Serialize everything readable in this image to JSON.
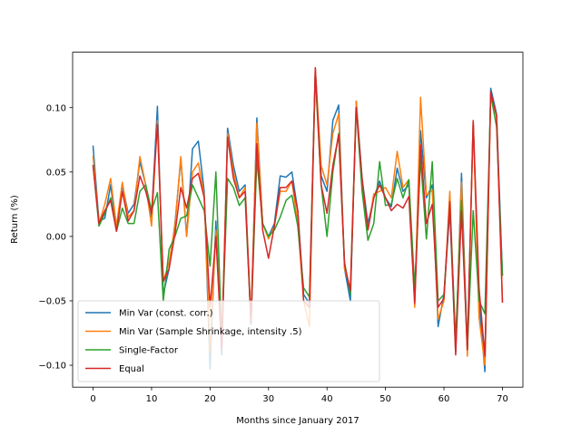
{
  "chart_data": {
    "type": "line",
    "title": "",
    "xlabel": "Months since January 2017",
    "ylabel": "Return (%)",
    "xlim": [
      -3.5,
      73.5
    ],
    "ylim": [
      -0.117,
      0.143
    ],
    "x_ticks": [
      0,
      10,
      20,
      30,
      40,
      50,
      60,
      70
    ],
    "x_tick_labels": [
      "0",
      "10",
      "20",
      "30",
      "40",
      "50",
      "60",
      "70"
    ],
    "y_ticks": [
      -0.1,
      -0.05,
      0.0,
      0.05,
      0.1
    ],
    "y_tick_labels": [
      "−0.10",
      "−0.05",
      "0.00",
      "0.05",
      "0.10"
    ],
    "grid": false,
    "legend_position": "lower-left",
    "x": [
      0,
      1,
      2,
      3,
      4,
      5,
      6,
      7,
      8,
      9,
      10,
      11,
      12,
      13,
      14,
      15,
      16,
      17,
      18,
      19,
      20,
      21,
      22,
      23,
      24,
      25,
      26,
      27,
      28,
      29,
      30,
      31,
      32,
      33,
      34,
      35,
      36,
      37,
      38,
      39,
      40,
      41,
      42,
      43,
      44,
      45,
      46,
      47,
      48,
      49,
      50,
      51,
      52,
      53,
      54,
      55,
      56,
      57,
      58,
      59,
      60,
      61,
      62,
      63,
      64,
      65,
      66,
      67,
      68,
      69,
      70
    ],
    "series": [
      {
        "name": "Min Var (const. corr.)",
        "color": "#1f77b4",
        "values": [
          0.07,
          0.012,
          0.014,
          0.04,
          0.005,
          0.04,
          0.018,
          0.025,
          0.058,
          0.04,
          0.015,
          0.101,
          -0.045,
          -0.025,
          0.01,
          0.06,
          0.0,
          0.068,
          0.074,
          0.035,
          -0.103,
          0.012,
          -0.092,
          0.084,
          0.055,
          0.035,
          0.04,
          -0.068,
          0.092,
          0.01,
          0.0,
          0.01,
          0.047,
          0.046,
          0.05,
          0.02,
          -0.045,
          -0.052,
          0.13,
          0.047,
          0.035,
          0.09,
          0.102,
          -0.025,
          -0.05,
          0.105,
          0.045,
          0.01,
          0.03,
          0.043,
          0.03,
          0.023,
          0.053,
          0.035,
          0.04,
          -0.05,
          0.082,
          0.03,
          0.04,
          -0.07,
          -0.045,
          0.02,
          -0.09,
          0.049,
          -0.088,
          0.089,
          -0.05,
          -0.105,
          0.115,
          0.095,
          -0.03
        ]
      },
      {
        "name": "Min Var (Sample Shrinkage, intensity .5)",
        "color": "#ff7f0e",
        "values": [
          0.062,
          0.01,
          0.025,
          0.045,
          0.008,
          0.042,
          0.015,
          0.02,
          0.062,
          0.04,
          0.008,
          0.09,
          -0.035,
          -0.02,
          0.008,
          0.062,
          0.0,
          0.05,
          0.057,
          0.032,
          -0.09,
          0.005,
          -0.085,
          0.08,
          0.05,
          0.03,
          0.038,
          -0.065,
          0.088,
          0.01,
          -0.002,
          0.008,
          0.035,
          0.035,
          0.043,
          0.01,
          -0.05,
          -0.07,
          0.13,
          0.055,
          0.04,
          0.08,
          0.095,
          -0.025,
          -0.04,
          0.105,
          0.04,
          0.005,
          0.033,
          0.035,
          0.038,
          0.03,
          0.066,
          0.038,
          0.044,
          -0.055,
          0.108,
          0.032,
          0.036,
          -0.064,
          -0.05,
          0.035,
          -0.088,
          0.042,
          -0.093,
          0.089,
          -0.063,
          -0.1,
          0.109,
          0.094,
          -0.05
        ]
      },
      {
        "name": "Single-Factor",
        "color": "#2ca02c",
        "values": [
          0.055,
          0.008,
          0.018,
          0.03,
          0.004,
          0.022,
          0.01,
          0.01,
          0.035,
          0.04,
          0.02,
          0.034,
          -0.05,
          -0.01,
          0.0,
          0.014,
          0.016,
          0.04,
          0.03,
          0.02,
          -0.023,
          0.05,
          -0.08,
          0.045,
          0.038,
          0.024,
          0.03,
          -0.068,
          0.06,
          0.01,
          0.0,
          0.005,
          0.015,
          0.028,
          0.032,
          0.008,
          -0.04,
          -0.047,
          0.125,
          0.04,
          0.0,
          0.05,
          0.08,
          -0.02,
          -0.045,
          0.1,
          0.035,
          -0.003,
          0.01,
          0.058,
          0.024,
          0.025,
          0.045,
          0.03,
          0.044,
          -0.04,
          0.06,
          -0.002,
          0.058,
          -0.05,
          -0.045,
          0.025,
          -0.08,
          0.028,
          -0.088,
          0.02,
          -0.05,
          -0.06,
          0.11,
          0.085,
          -0.03
        ]
      },
      {
        "name": "Equal",
        "color": "#d62728",
        "values": [
          0.055,
          0.01,
          0.02,
          0.028,
          0.004,
          0.035,
          0.012,
          0.02,
          0.047,
          0.035,
          0.018,
          0.087,
          -0.035,
          -0.025,
          0.002,
          0.038,
          0.022,
          0.045,
          0.049,
          0.03,
          -0.055,
          0.0,
          -0.088,
          0.077,
          0.045,
          0.03,
          0.035,
          -0.067,
          0.072,
          0.005,
          -0.017,
          0.008,
          0.038,
          0.038,
          0.043,
          0.02,
          -0.05,
          -0.055,
          0.131,
          0.04,
          0.018,
          0.055,
          0.079,
          -0.022,
          -0.042,
          0.1,
          0.045,
          0.005,
          0.03,
          0.04,
          0.03,
          0.02,
          0.025,
          0.022,
          0.031,
          -0.052,
          0.071,
          0.01,
          0.025,
          -0.055,
          -0.048,
          0.027,
          -0.092,
          0.02,
          -0.088,
          0.09,
          -0.04,
          -0.093,
          0.112,
          0.093,
          -0.051
        ]
      }
    ]
  }
}
